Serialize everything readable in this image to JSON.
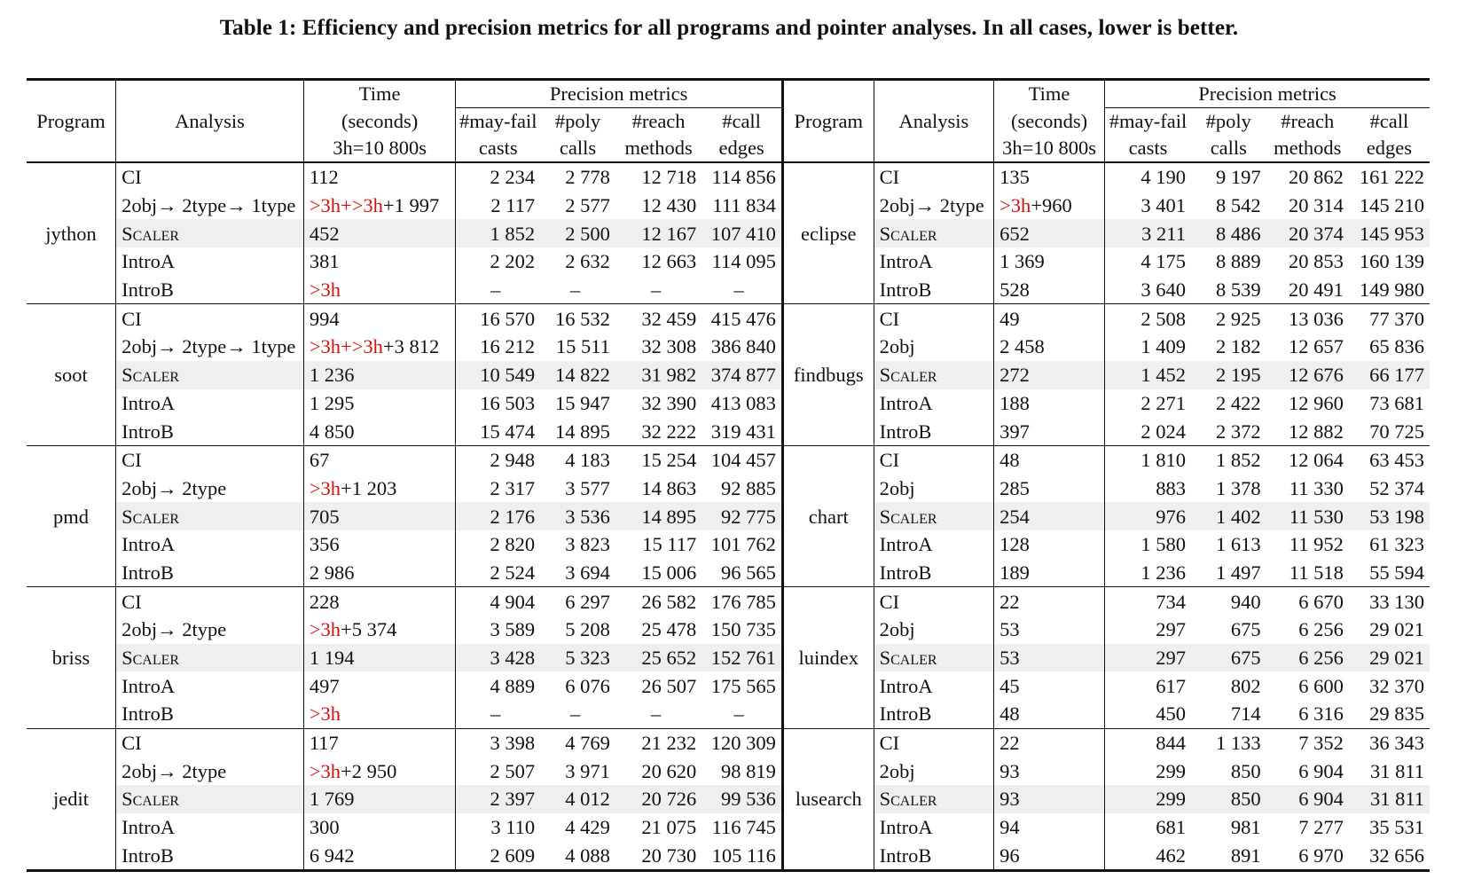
{
  "caption": "Table 1: Efficiency and precision metrics for all programs and pointer analyses. In all cases, lower is better.",
  "headers": {
    "program": "Program",
    "analysis": "Analysis",
    "time_l1": "Time",
    "time_l2": "(seconds)",
    "time_l3": "3h=10 800s",
    "precision": "Precision metrics",
    "c1_l1": "#may-fail",
    "c1_l2": "casts",
    "c2_l1": "#poly",
    "c2_l2": "calls",
    "c3_l1": "#reach",
    "c3_l2": "methods",
    "c4_l1": "#call",
    "c4_l2": "edges"
  },
  "left": [
    {
      "program": "jython",
      "rows": [
        {
          "analysis": "CI",
          "time_pre": "",
          "time": "112",
          "v": [
            "2 234",
            "2 778",
            "12 718",
            "114 856"
          ]
        },
        {
          "analysis": "2obj→ 2type→ 1type",
          "time_pre": ">3h+>3h",
          "time": "+1 997",
          "v": [
            "2 117",
            "2 577",
            "12 430",
            "111 834"
          ]
        },
        {
          "analysis": "Scaler",
          "time_pre": "",
          "time": "452",
          "v": [
            "1 852",
            "2 500",
            "12 167",
            "107 410"
          ]
        },
        {
          "analysis": "IntroA",
          "time_pre": "",
          "time": "381",
          "v": [
            "2 202",
            "2 632",
            "12 663",
            "114 095"
          ]
        },
        {
          "analysis": "IntroB",
          "time_pre": ">3h",
          "time": "",
          "v": [
            "–",
            "–",
            "–",
            "–"
          ]
        }
      ]
    },
    {
      "program": "soot",
      "rows": [
        {
          "analysis": "CI",
          "time_pre": "",
          "time": "994",
          "v": [
            "16 570",
            "16 532",
            "32 459",
            "415 476"
          ]
        },
        {
          "analysis": "2obj→ 2type→ 1type",
          "time_pre": ">3h+>3h",
          "time": "+3 812",
          "v": [
            "16 212",
            "15 511",
            "32 308",
            "386 840"
          ]
        },
        {
          "analysis": "Scaler",
          "time_pre": "",
          "time": "1 236",
          "v": [
            "10 549",
            "14 822",
            "31 982",
            "374 877"
          ]
        },
        {
          "analysis": "IntroA",
          "time_pre": "",
          "time": "1 295",
          "v": [
            "16 503",
            "15 947",
            "32 390",
            "413 083"
          ]
        },
        {
          "analysis": "IntroB",
          "time_pre": "",
          "time": "4 850",
          "v": [
            "15 474",
            "14 895",
            "32 222",
            "319 431"
          ]
        }
      ]
    },
    {
      "program": "pmd",
      "rows": [
        {
          "analysis": "CI",
          "time_pre": "",
          "time": "67",
          "v": [
            "2 948",
            "4 183",
            "15 254",
            "104 457"
          ]
        },
        {
          "analysis": "2obj→ 2type",
          "time_pre": ">3h",
          "time": "+1 203",
          "v": [
            "2 317",
            "3 577",
            "14 863",
            "92 885"
          ]
        },
        {
          "analysis": "Scaler",
          "time_pre": "",
          "time": "705",
          "v": [
            "2 176",
            "3 536",
            "14 895",
            "92 775"
          ]
        },
        {
          "analysis": "IntroA",
          "time_pre": "",
          "time": "356",
          "v": [
            "2 820",
            "3 823",
            "15 117",
            "101 762"
          ]
        },
        {
          "analysis": "IntroB",
          "time_pre": "",
          "time": "2 986",
          "v": [
            "2 524",
            "3 694",
            "15 006",
            "96 565"
          ]
        }
      ]
    },
    {
      "program": "briss",
      "rows": [
        {
          "analysis": "CI",
          "time_pre": "",
          "time": "228",
          "v": [
            "4 904",
            "6 297",
            "26 582",
            "176 785"
          ]
        },
        {
          "analysis": "2obj→ 2type",
          "time_pre": ">3h",
          "time": "+5 374",
          "v": [
            "3 589",
            "5 208",
            "25 478",
            "150 735"
          ]
        },
        {
          "analysis": "Scaler",
          "time_pre": "",
          "time": "1 194",
          "v": [
            "3 428",
            "5 323",
            "25 652",
            "152 761"
          ]
        },
        {
          "analysis": "IntroA",
          "time_pre": "",
          "time": "497",
          "v": [
            "4 889",
            "6 076",
            "26 507",
            "175 565"
          ]
        },
        {
          "analysis": "IntroB",
          "time_pre": ">3h",
          "time": "",
          "v": [
            "–",
            "–",
            "–",
            "–"
          ]
        }
      ]
    },
    {
      "program": "jedit",
      "rows": [
        {
          "analysis": "CI",
          "time_pre": "",
          "time": "117",
          "v": [
            "3 398",
            "4 769",
            "21 232",
            "120 309"
          ]
        },
        {
          "analysis": "2obj→ 2type",
          "time_pre": ">3h",
          "time": "+2 950",
          "v": [
            "2 507",
            "3 971",
            "20 620",
            "98 819"
          ]
        },
        {
          "analysis": "Scaler",
          "time_pre": "",
          "time": "1 769",
          "v": [
            "2 397",
            "4 012",
            "20 726",
            "99 536"
          ]
        },
        {
          "analysis": "IntroA",
          "time_pre": "",
          "time": "300",
          "v": [
            "3 110",
            "4 429",
            "21 075",
            "116 745"
          ]
        },
        {
          "analysis": "IntroB",
          "time_pre": "",
          "time": "6 942",
          "v": [
            "2 609",
            "4 088",
            "20 730",
            "105 116"
          ]
        }
      ]
    }
  ],
  "right": [
    {
      "program": "eclipse",
      "rows": [
        {
          "analysis": "CI",
          "time_pre": "",
          "time": "135",
          "v": [
            "4 190",
            "9 197",
            "20 862",
            "161 222"
          ]
        },
        {
          "analysis": "2obj→ 2type",
          "time_pre": ">3h",
          "time": "+960",
          "v": [
            "3 401",
            "8 542",
            "20 314",
            "145 210"
          ]
        },
        {
          "analysis": "Scaler",
          "time_pre": "",
          "time": "652",
          "v": [
            "3 211",
            "8 486",
            "20 374",
            "145 953"
          ]
        },
        {
          "analysis": "IntroA",
          "time_pre": "",
          "time": "1 369",
          "v": [
            "4 175",
            "8 889",
            "20 853",
            "160 139"
          ]
        },
        {
          "analysis": "IntroB",
          "time_pre": "",
          "time": "528",
          "v": [
            "3 640",
            "8 539",
            "20 491",
            "149 980"
          ]
        }
      ]
    },
    {
      "program": "findbugs",
      "rows": [
        {
          "analysis": "CI",
          "time_pre": "",
          "time": "49",
          "v": [
            "2 508",
            "2 925",
            "13 036",
            "77 370"
          ]
        },
        {
          "analysis": "2obj",
          "time_pre": "",
          "time": "2 458",
          "v": [
            "1 409",
            "2 182",
            "12 657",
            "65 836"
          ]
        },
        {
          "analysis": "Scaler",
          "time_pre": "",
          "time": "272",
          "v": [
            "1 452",
            "2 195",
            "12 676",
            "66 177"
          ]
        },
        {
          "analysis": "IntroA",
          "time_pre": "",
          "time": "188",
          "v": [
            "2 271",
            "2 422",
            "12 960",
            "73 681"
          ]
        },
        {
          "analysis": "IntroB",
          "time_pre": "",
          "time": "397",
          "v": [
            "2 024",
            "2 372",
            "12 882",
            "70 725"
          ]
        }
      ]
    },
    {
      "program": "chart",
      "rows": [
        {
          "analysis": "CI",
          "time_pre": "",
          "time": "48",
          "v": [
            "1 810",
            "1 852",
            "12 064",
            "63 453"
          ]
        },
        {
          "analysis": "2obj",
          "time_pre": "",
          "time": "285",
          "v": [
            "883",
            "1 378",
            "11 330",
            "52 374"
          ]
        },
        {
          "analysis": "Scaler",
          "time_pre": "",
          "time": "254",
          "v": [
            "976",
            "1 402",
            "11 530",
            "53 198"
          ]
        },
        {
          "analysis": "IntroA",
          "time_pre": "",
          "time": "128",
          "v": [
            "1 580",
            "1 613",
            "11 952",
            "61 323"
          ]
        },
        {
          "analysis": "IntroB",
          "time_pre": "",
          "time": "189",
          "v": [
            "1 236",
            "1 497",
            "11 518",
            "55 594"
          ]
        }
      ]
    },
    {
      "program": "luindex",
      "rows": [
        {
          "analysis": "CI",
          "time_pre": "",
          "time": "22",
          "v": [
            "734",
            "940",
            "6 670",
            "33 130"
          ]
        },
        {
          "analysis": "2obj",
          "time_pre": "",
          "time": "53",
          "v": [
            "297",
            "675",
            "6 256",
            "29 021"
          ]
        },
        {
          "analysis": "Scaler",
          "time_pre": "",
          "time": "53",
          "v": [
            "297",
            "675",
            "6 256",
            "29 021"
          ]
        },
        {
          "analysis": "IntroA",
          "time_pre": "",
          "time": "45",
          "v": [
            "617",
            "802",
            "6 600",
            "32 370"
          ]
        },
        {
          "analysis": "IntroB",
          "time_pre": "",
          "time": "48",
          "v": [
            "450",
            "714",
            "6 316",
            "29 835"
          ]
        }
      ]
    },
    {
      "program": "lusearch",
      "rows": [
        {
          "analysis": "CI",
          "time_pre": "",
          "time": "22",
          "v": [
            "844",
            "1 133",
            "7 352",
            "36 343"
          ]
        },
        {
          "analysis": "2obj",
          "time_pre": "",
          "time": "93",
          "v": [
            "299",
            "850",
            "6 904",
            "31 811"
          ]
        },
        {
          "analysis": "Scaler",
          "time_pre": "",
          "time": "93",
          "v": [
            "299",
            "850",
            "6 904",
            "31 811"
          ]
        },
        {
          "analysis": "IntroA",
          "time_pre": "",
          "time": "94",
          "v": [
            "681",
            "981",
            "7 277",
            "35 531"
          ]
        },
        {
          "analysis": "IntroB",
          "time_pre": "",
          "time": "96",
          "v": [
            "462",
            "891",
            "6 970",
            "32 656"
          ]
        }
      ]
    }
  ]
}
